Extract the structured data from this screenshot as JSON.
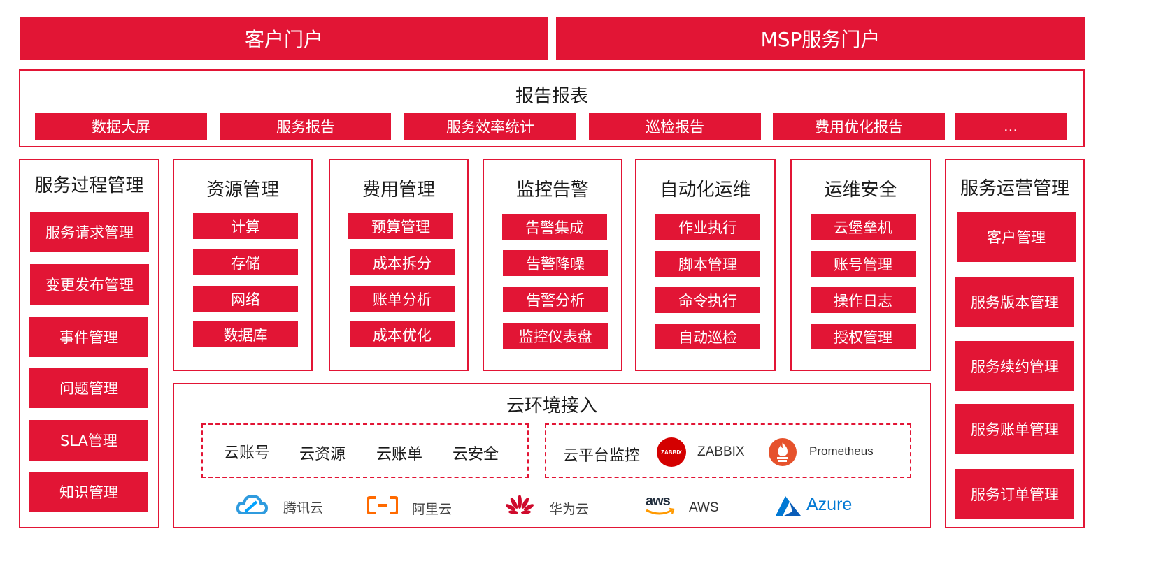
{
  "portals": {
    "customer": "客户门户",
    "msp": "MSP服务门户"
  },
  "reports": {
    "title": "报告报表",
    "items": [
      "数据大屏",
      "服务报告",
      "服务效率统计",
      "巡检报告",
      "费用优化报告",
      "..."
    ]
  },
  "left_panel": {
    "title": "服务过程管理",
    "items": [
      "服务请求管理",
      "变更发布管理",
      "事件管理",
      "问题管理",
      "SLA管理",
      "知识管理"
    ]
  },
  "modules": [
    {
      "title": "资源管理",
      "items": [
        "计算",
        "存储",
        "网络",
        "数据库"
      ]
    },
    {
      "title": "费用管理",
      "items": [
        "预算管理",
        "成本拆分",
        "账单分析",
        "成本优化"
      ]
    },
    {
      "title": "监控告警",
      "items": [
        "告警集成",
        "告警降噪",
        "告警分析",
        "监控仪表盘"
      ]
    },
    {
      "title": "自动化运维",
      "items": [
        "作业执行",
        "脚本管理",
        "命令执行",
        "自动巡检"
      ]
    },
    {
      "title": "运维安全",
      "items": [
        "云堡垒机",
        "账号管理",
        "操作日志",
        "授权管理"
      ]
    }
  ],
  "right_panel": {
    "title": "服务运营管理",
    "items": [
      "客户管理",
      "服务版本管理",
      "服务续约管理",
      "服务账单管理",
      "服务订单管理"
    ]
  },
  "cloud": {
    "title": "云环境接入",
    "access_items": [
      "云账号",
      "云资源",
      "云账单",
      "云安全"
    ],
    "monitor_label": "云平台监控",
    "monitor_tools": [
      {
        "name": "ZABBIX",
        "icon": "zabbix-logo-icon",
        "badge": "ZABBIX"
      },
      {
        "name": "Prometheus",
        "icon": "prometheus-logo-icon"
      }
    ],
    "providers": [
      {
        "name": "腾讯云",
        "icon": "tencent-cloud-logo-icon"
      },
      {
        "name": "阿里云",
        "icon": "aliyun-logo-icon"
      },
      {
        "name": "华为云",
        "icon": "huawei-cloud-logo-icon"
      },
      {
        "name": "AWS",
        "icon": "aws-logo-icon",
        "logo_text": "aws"
      },
      {
        "name": "Azure",
        "icon": "azure-logo-icon"
      }
    ]
  },
  "colors": {
    "brand_red": "#e21535",
    "zabbix_red": "#d40000",
    "prometheus_orange": "#e6522c",
    "tencent_blue": "#2f9bde",
    "aliyun_orange": "#ff6a00",
    "huawei_red": "#cf0a2c",
    "aws_dark": "#232f3e",
    "aws_orange": "#ff9900",
    "azure_blue": "#0078d4"
  }
}
